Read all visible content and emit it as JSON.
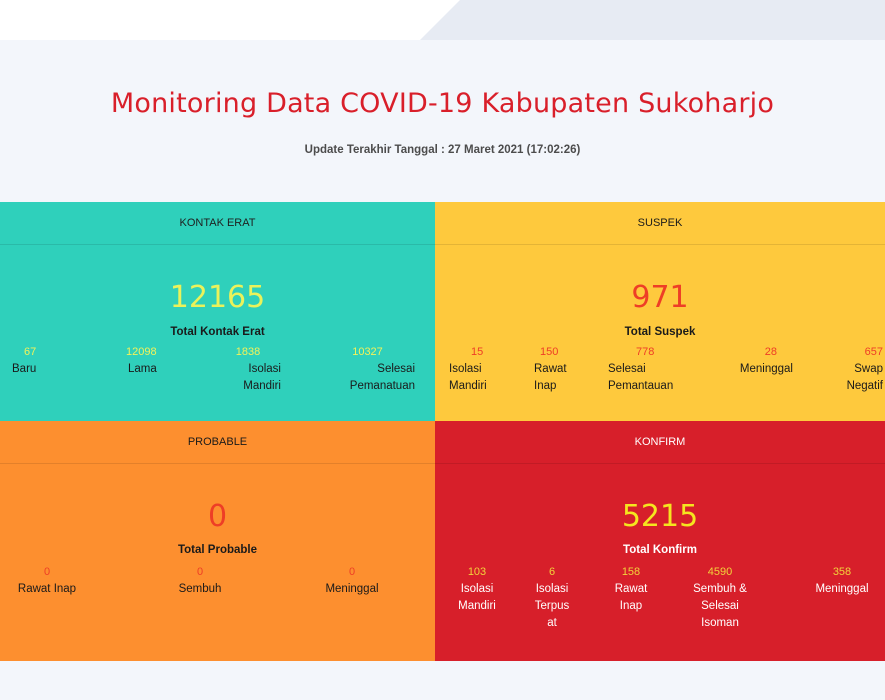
{
  "header": {
    "title": "Monitoring Data COVID-19 Kabupaten Sukoharjo",
    "subtitle": "Update Terakhir Tanggal : 27 Maret 2021 (17:02:26)"
  },
  "kontak_erat": {
    "heading": "KONTAK ERAT",
    "total_value": "12165",
    "total_label": "Total Kontak Erat",
    "stats": [
      {
        "value": "67",
        "label": "Baru"
      },
      {
        "value": "12098",
        "label": "Lama"
      },
      {
        "value": "1838",
        "label": "Isolasi Mandiri"
      },
      {
        "value": "10327",
        "label": "Selesai Pemanatuan"
      }
    ]
  },
  "suspek": {
    "heading": "SUSPEK",
    "total_value": "971",
    "total_label": "Total Suspek",
    "stats": [
      {
        "value": "15",
        "label": "Isolasi Mandiri"
      },
      {
        "value": "150",
        "label": "Rawat Inap"
      },
      {
        "value": "778",
        "label": "Selesai Pemantauan"
      },
      {
        "value": "28",
        "label": "Meninggal"
      },
      {
        "value": "657",
        "label": "Swap Negatif"
      }
    ]
  },
  "probable": {
    "heading": "PROBABLE",
    "total_value": "0",
    "total_label": "Total Probable",
    "stats": [
      {
        "value": "0",
        "label": "Rawat Inap"
      },
      {
        "value": "0",
        "label": "Sembuh"
      },
      {
        "value": "0",
        "label": "Meninggal"
      }
    ]
  },
  "konfirm": {
    "heading": "KONFIRM",
    "total_value": "5215",
    "total_label": "Total Konfirm",
    "stats": [
      {
        "value": "103",
        "label": "Isolasi Mandiri"
      },
      {
        "value": "6",
        "label": "Isolasi Terpus at"
      },
      {
        "value": "158",
        "label": "Rawat Inap"
      },
      {
        "value": "4590",
        "label": "Sembuh & Selesai Isoman"
      },
      {
        "value": "358",
        "label": "Meninggal"
      }
    ]
  },
  "colors": {
    "kontak_erat": "#2fd0bb",
    "suspek": "#fec93d",
    "probable": "#fd8f2f",
    "konfirm": "#d71f2a",
    "title": "#d91f2a"
  }
}
